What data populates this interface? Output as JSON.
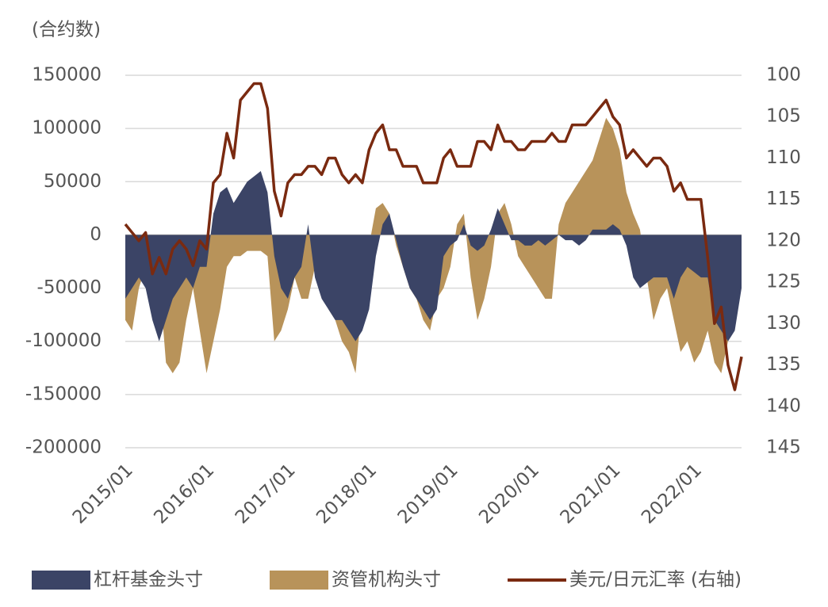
{
  "chart_data": {
    "type": "area-line",
    "y_label": "(合约数)",
    "categories": [
      "2015/01",
      null,
      null,
      null,
      null,
      null,
      null,
      null,
      null,
      null,
      null,
      null,
      "2016/01",
      null,
      null,
      null,
      null,
      null,
      null,
      null,
      null,
      null,
      null,
      null,
      "2017/01",
      null,
      null,
      null,
      null,
      null,
      null,
      null,
      null,
      null,
      null,
      null,
      "2018/01",
      null,
      null,
      null,
      null,
      null,
      null,
      null,
      null,
      null,
      null,
      null,
      "2019/01",
      null,
      null,
      null,
      null,
      null,
      null,
      null,
      null,
      null,
      null,
      null,
      "2020/01",
      null,
      null,
      null,
      null,
      null,
      null,
      null,
      null,
      null,
      null,
      null,
      "2021/01",
      null,
      null,
      null,
      null,
      null,
      null,
      null,
      null,
      null,
      null,
      null,
      "2022/01",
      null,
      null,
      null,
      null,
      null,
      null,
      null
    ],
    "series": [
      {
        "name": "资管机构头寸",
        "color": "#b8935a",
        "kind": "area",
        "values": [
          -80000,
          -90000,
          -50000,
          -30000,
          -20000,
          -40000,
          -120000,
          -130000,
          -120000,
          -80000,
          -50000,
          -90000,
          -130000,
          -100000,
          -70000,
          -30000,
          -20000,
          -20000,
          -15000,
          -15000,
          -15000,
          -20000,
          -100000,
          -90000,
          -70000,
          -40000,
          -60000,
          -60000,
          -30000,
          -20000,
          -70000,
          -80000,
          -100000,
          -110000,
          -130000,
          -60000,
          -10000,
          25000,
          30000,
          20000,
          -10000,
          -30000,
          -50000,
          -60000,
          -80000,
          -90000,
          -60000,
          -50000,
          -30000,
          10000,
          20000,
          -40000,
          -80000,
          -60000,
          -30000,
          20000,
          30000,
          10000,
          -20000,
          -30000,
          -40000,
          -50000,
          -60000,
          -60000,
          10000,
          30000,
          40000,
          50000,
          60000,
          70000,
          90000,
          110000,
          100000,
          80000,
          40000,
          20000,
          5000,
          -40000,
          -80000,
          -60000,
          -50000,
          -80000,
          -110000,
          -100000,
          -120000,
          -110000,
          -90000,
          -120000,
          -130000,
          -100000,
          -80000,
          -20000
        ]
      },
      {
        "name": "杠杆基金头寸",
        "color": "#3b4466",
        "kind": "area",
        "values": [
          -60000,
          -50000,
          -40000,
          -50000,
          -80000,
          -100000,
          -80000,
          -60000,
          -50000,
          -40000,
          -50000,
          -30000,
          -30000,
          20000,
          40000,
          45000,
          30000,
          40000,
          50000,
          55000,
          60000,
          40000,
          -20000,
          -50000,
          -60000,
          -40000,
          -30000,
          10000,
          -40000,
          -60000,
          -70000,
          -80000,
          -80000,
          -90000,
          -100000,
          -90000,
          -70000,
          -20000,
          10000,
          20000,
          -5000,
          -30000,
          -50000,
          -60000,
          -70000,
          -80000,
          -70000,
          -20000,
          -10000,
          -5000,
          10000,
          -10000,
          -15000,
          -10000,
          5000,
          25000,
          10000,
          -5000,
          -5000,
          -10000,
          -10000,
          -5000,
          -10000,
          -5000,
          0,
          -5000,
          -5000,
          -10000,
          -5000,
          5000,
          5000,
          5000,
          10000,
          5000,
          -10000,
          -40000,
          -50000,
          -45000,
          -40000,
          -40000,
          -40000,
          -60000,
          -40000,
          -30000,
          -35000,
          -40000,
          -40000,
          -80000,
          -90000,
          -100000,
          -90000,
          -50000
        ]
      },
      {
        "name": "美元/日元汇率 (右轴)",
        "color": "#7a2a10",
        "kind": "line",
        "axis": "y2",
        "values": [
          118,
          119,
          120,
          119,
          124,
          122,
          124,
          121,
          120,
          121,
          123,
          120,
          121,
          113,
          112,
          107,
          110,
          103,
          102,
          101,
          101,
          104,
          114,
          117,
          113,
          112,
          112,
          111,
          111,
          112,
          110,
          110,
          112,
          113,
          112,
          113,
          109,
          107,
          106,
          109,
          109,
          111,
          111,
          111,
          113,
          113,
          113,
          110,
          109,
          111,
          111,
          111,
          108,
          108,
          109,
          106,
          108,
          108,
          109,
          109,
          108,
          108,
          108,
          107,
          108,
          108,
          106,
          106,
          106,
          105,
          104,
          103,
          105,
          106,
          110,
          109,
          110,
          111,
          110,
          110,
          111,
          114,
          113,
          115,
          115,
          115,
          122,
          130,
          128,
          135,
          138,
          134
        ]
      }
    ],
    "ylim": [
      -200000,
      150000
    ],
    "yticks": [
      150000,
      100000,
      50000,
      0,
      -50000,
      -100000,
      -150000,
      -200000
    ],
    "y2lim": [
      145,
      100
    ],
    "y2_reversed": true,
    "y2ticks": [
      100,
      105,
      110,
      115,
      120,
      125,
      130,
      135,
      140,
      145
    ],
    "grid": true,
    "legend": "bottom"
  }
}
